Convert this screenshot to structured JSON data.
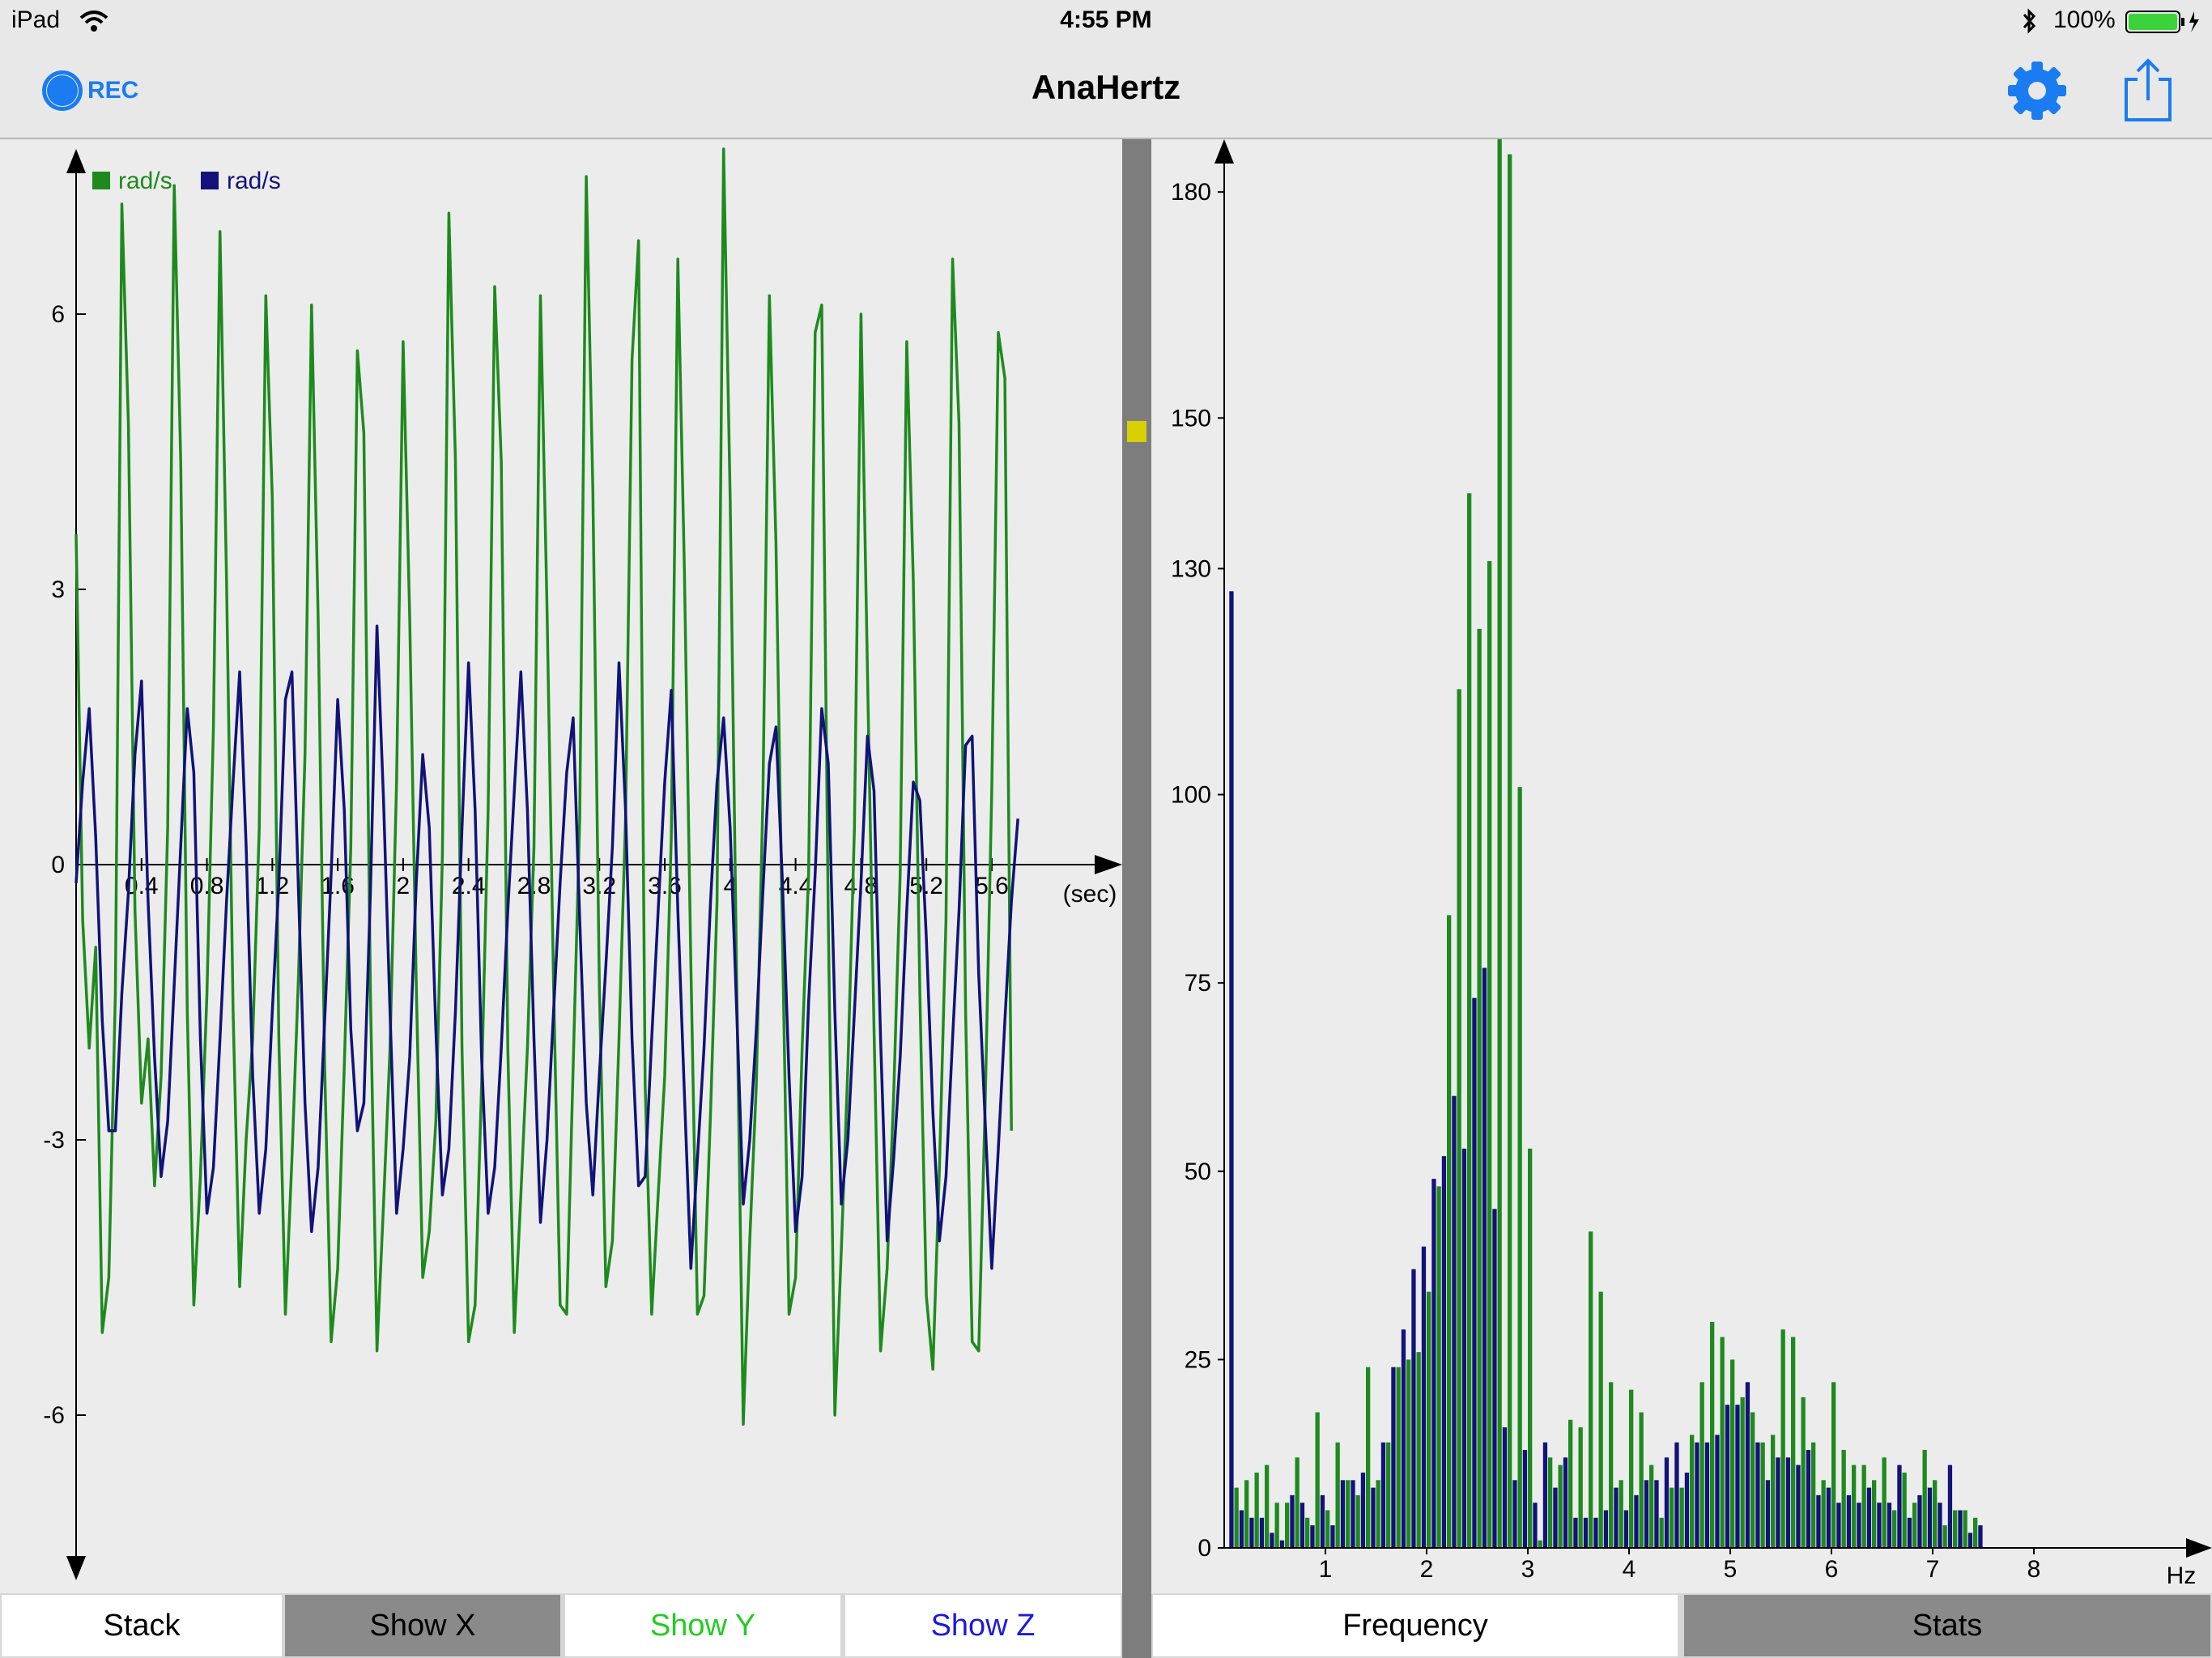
{
  "status_bar": {
    "device": "iPad",
    "time": "4:55 PM",
    "battery": "100%",
    "wifi_icon": "wifi-icon",
    "bluetooth_icon": "bluetooth-icon",
    "battery_icon": "battery-icon"
  },
  "navbar": {
    "title": "AnaHertz",
    "rec_label": "REC",
    "settings_icon": "gear-icon",
    "share_icon": "share-icon"
  },
  "colors": {
    "accent": "#1a7cf0",
    "series_y": "#1e8a1e",
    "series_z": "#12127a",
    "marker": "#d8d000"
  },
  "time_chart": {
    "chart_data": {
      "type": "line",
      "xlabel": "(sec)",
      "xlim": [
        0,
        6.15
      ],
      "ylim": [
        -7.8,
        7.8
      ],
      "x_ticks": [
        "0.4",
        "0.8",
        "1.2",
        "1.6",
        "2",
        "2.4",
        "2.8",
        "3.2",
        "3.6",
        "4",
        "4.4",
        "4.8",
        "5.2",
        "5.6"
      ],
      "y_ticks": [
        "6",
        "3",
        "0",
        "-3",
        "-6"
      ],
      "legend": [
        "rad/s",
        "rad/s"
      ],
      "legend_position": "top-left",
      "series": [
        {
          "name": "rad/s",
          "color": "#1e8a1e",
          "sample_interval": 0.04,
          "y": [
            3.6,
            -0.6,
            -2.0,
            -0.9,
            -5.1,
            -4.5,
            -1.4,
            7.2,
            4.8,
            -0.5,
            -2.6,
            -1.9,
            -3.5,
            -2.3,
            0.4,
            7.4,
            4.4,
            -1.6,
            -4.8,
            -3.4,
            -1.4,
            1.5,
            6.9,
            3.1,
            -1.6,
            -4.6,
            -3.0,
            -1.9,
            0.4,
            6.2,
            4.0,
            -1.9,
            -4.9,
            -3.2,
            -1.2,
            1.2,
            6.1,
            2.7,
            -2.2,
            -5.2,
            -4.4,
            -2.2,
            0.2,
            5.6,
            4.7,
            -1.4,
            -5.3,
            -3.7,
            -2.0,
            0.9,
            5.7,
            2.7,
            -1.3,
            -4.5,
            -4.0,
            -2.8,
            0.1,
            7.1,
            4.4,
            -2.0,
            -5.2,
            -4.8,
            -2.4,
            0.6,
            6.3,
            4.4,
            -2.0,
            -5.1,
            -3.6,
            -2.0,
            0.2,
            6.2,
            2.8,
            -1.3,
            -4.8,
            -4.9,
            -2.2,
            0.5,
            7.5,
            4.1,
            -1.3,
            -4.6,
            -4.1,
            -1.9,
            0.5,
            5.5,
            6.8,
            -2.4,
            -4.9,
            -3.6,
            -2.3,
            0.3,
            6.6,
            3.2,
            -1.1,
            -4.9,
            -4.7,
            -2.7,
            -0.4,
            7.8,
            4.0,
            -1.3,
            -6.1,
            -4.1,
            -2.4,
            0.7,
            6.2,
            3.5,
            -0.8,
            -4.9,
            -4.5,
            -2.0,
            -0.1,
            5.8,
            6.1,
            -0.6,
            -6.0,
            -4.2,
            -2.2,
            0.4,
            6.0,
            2.1,
            -1.8,
            -5.3,
            -4.4,
            -2.5,
            -0.1,
            5.7,
            3.1,
            -1.4,
            -4.7,
            -5.5,
            -3.3,
            -0.6,
            6.6,
            4.8,
            -1.6,
            -5.2,
            -5.3,
            -2.6,
            0.8,
            5.8,
            5.3,
            -2.9
          ]
        },
        {
          "name": "rad/s",
          "color": "#12127a",
          "sample_interval": 0.04,
          "y": [
            -0.2,
            0.9,
            1.7,
            0.3,
            -1.7,
            -2.9,
            -2.9,
            -1.4,
            -0.3,
            1.2,
            2.0,
            -0.4,
            -2.1,
            -3.4,
            -2.8,
            -1.3,
            0.2,
            1.7,
            1.0,
            -1.9,
            -3.8,
            -3.3,
            -1.9,
            -0.4,
            0.9,
            2.1,
            0.2,
            -2.3,
            -3.8,
            -3.1,
            -1.6,
            -0.2,
            1.8,
            2.1,
            -0.3,
            -2.6,
            -4.0,
            -3.3,
            -1.7,
            -0.1,
            1.8,
            0.6,
            -1.8,
            -2.9,
            -2.6,
            -0.3,
            2.6,
            0.7,
            -1.6,
            -3.8,
            -3.1,
            -2.1,
            -0.2,
            1.2,
            0.4,
            -1.8,
            -3.6,
            -3.1,
            -1.6,
            0.4,
            2.2,
            0.6,
            -2.1,
            -3.8,
            -3.3,
            -2.0,
            -0.5,
            0.8,
            2.1,
            0.6,
            -1.9,
            -3.9,
            -3.0,
            -1.6,
            -0.2,
            1.0,
            1.6,
            -0.6,
            -2.6,
            -3.6,
            -2.3,
            -1.1,
            0.2,
            2.2,
            0.6,
            -1.9,
            -3.5,
            -3.4,
            -1.9,
            -0.5,
            0.9,
            1.9,
            -0.5,
            -2.5,
            -4.4,
            -3.2,
            -2.0,
            -0.4,
            0.9,
            1.6,
            0.4,
            -1.6,
            -3.7,
            -3.0,
            -1.8,
            -0.3,
            1.1,
            1.5,
            -0.2,
            -2.3,
            -4.0,
            -3.4,
            -1.5,
            -0.1,
            1.7,
            1.1,
            -1.6,
            -3.7,
            -3.0,
            -1.6,
            -0.2,
            1.4,
            0.8,
            -1.9,
            -4.1,
            -3.2,
            -2.1,
            -0.5,
            0.9,
            0.7,
            -0.8,
            -2.7,
            -4.1,
            -3.4,
            -1.9,
            -0.5,
            1.3,
            1.4,
            -1.2,
            -2.8,
            -4.4,
            -3.1,
            -1.7,
            -0.4,
            0.5
          ]
        }
      ]
    }
  },
  "spectrum_chart": {
    "chart_data": {
      "type": "bar",
      "xlabel": "Hz",
      "xlim": [
        0,
        9.6
      ],
      "ylim": [
        0,
        187
      ],
      "x_ticks": [
        "1",
        "2",
        "3",
        "4",
        "5",
        "6",
        "7",
        "8"
      ],
      "y_ticks": [
        "0",
        "25",
        "50",
        "75",
        "100",
        "130",
        "150",
        "180"
      ],
      "bin_width_hz": 0.1,
      "series": [
        {
          "name": "Y",
          "color": "#1e8a1e",
          "values": [
            0,
            8,
            9,
            10,
            11,
            6,
            6,
            12,
            4,
            18,
            5,
            14,
            9,
            7,
            24,
            9,
            14,
            24,
            25,
            26,
            34,
            48,
            84,
            114,
            140,
            122,
            131,
            187,
            185,
            101,
            53,
            1,
            12,
            11,
            17,
            16,
            42,
            34,
            22,
            9,
            21,
            18,
            11,
            4,
            8,
            8,
            15,
            22,
            30,
            28,
            25,
            20,
            18,
            14,
            15,
            29,
            28,
            20,
            14,
            9,
            22,
            13,
            11,
            11,
            9,
            12,
            5,
            10,
            6,
            13,
            9,
            3,
            5,
            5,
            4
          ]
        },
        {
          "name": "Z",
          "color": "#12127a",
          "values": [
            127,
            5,
            4,
            4,
            2,
            1,
            7,
            6,
            3,
            7,
            3,
            9,
            9,
            10,
            8,
            14,
            24,
            29,
            37,
            40,
            49,
            52,
            60,
            53,
            73,
            77,
            45,
            16,
            9,
            13,
            6,
            14,
            8,
            12,
            4,
            4,
            4,
            5,
            8,
            5,
            7,
            9,
            9,
            12,
            14,
            10,
            14,
            14,
            15,
            19,
            19,
            22,
            14,
            9,
            12,
            12,
            11,
            13,
            7,
            8,
            6,
            7,
            6,
            8,
            6,
            6,
            11,
            4,
            7,
            8,
            6,
            11,
            5,
            2,
            3
          ]
        }
      ]
    }
  },
  "left_tabs": [
    {
      "label": "Stack",
      "color": "#000000",
      "bg": "#ffffff"
    },
    {
      "label": "Show X",
      "color": "#000000",
      "bg": "#8a8a8a"
    },
    {
      "label": "Show Y",
      "color": "#22cc22",
      "bg": "#ffffff"
    },
    {
      "label": "Show Z",
      "color": "#1a1ae0",
      "bg": "#ffffff"
    }
  ],
  "right_tabs": [
    {
      "label": "Frequency",
      "color": "#000000",
      "bg": "#ffffff"
    },
    {
      "label": "Stats",
      "color": "#000000",
      "bg": "#8a8a8a"
    }
  ]
}
